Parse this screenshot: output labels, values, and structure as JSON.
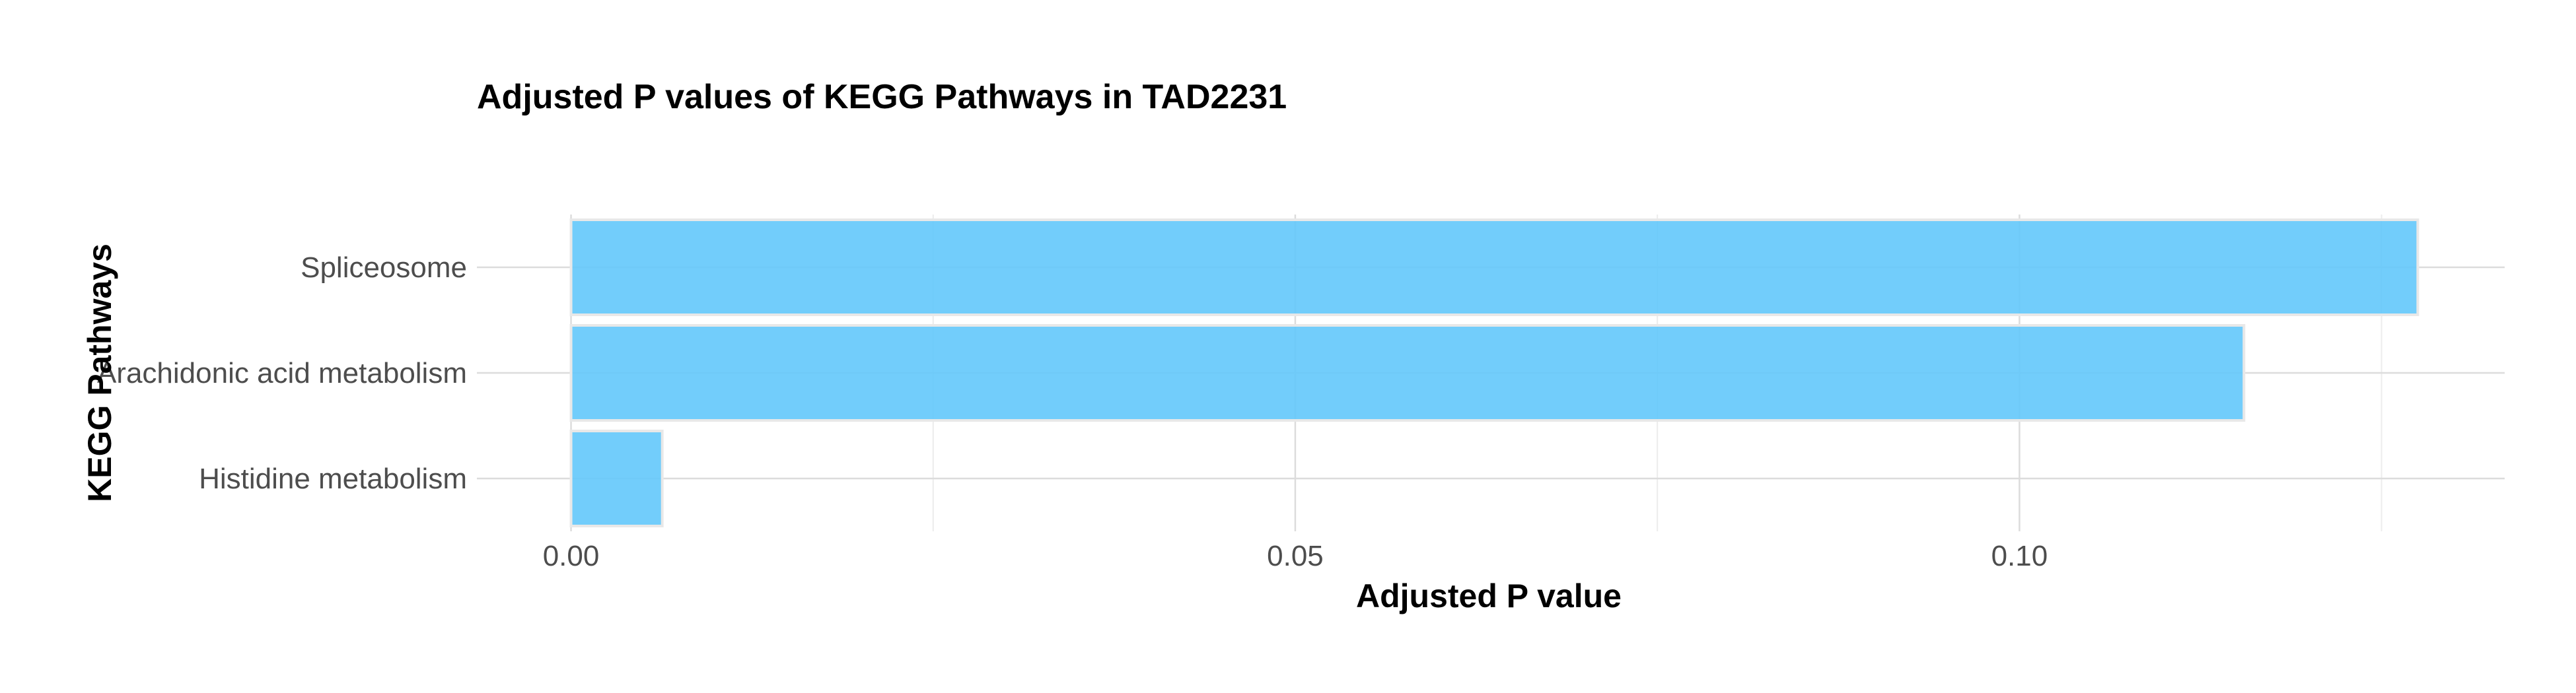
{
  "chart_data": {
    "type": "bar",
    "orientation": "horizontal",
    "title": "Adjusted P values of KEGG Pathways in TAD2231",
    "xlabel": "Adjusted P value",
    "ylabel": "KEGG Pathways",
    "categories": [
      "Spliceosome",
      "Arachidonic acid metabolism",
      "Histidine metabolism"
    ],
    "values": [
      0.1275,
      0.1155,
      0.0063
    ],
    "xlim": [
      -0.0065,
      0.1335
    ],
    "xticks": [
      0.0,
      0.05,
      0.1
    ],
    "xtick_labels": [
      "0.00",
      "0.05",
      "0.10"
    ],
    "bar_color": "#63C8FB",
    "grid": true,
    "legend": "none"
  }
}
